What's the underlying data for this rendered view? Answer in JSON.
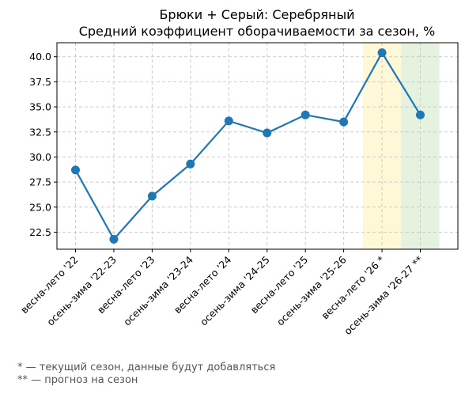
{
  "chart_data": {
    "type": "line",
    "title": "Брюки + Серый: Серебряный",
    "subtitle": "Средний коэффициент оборачиваемости за сезон, %",
    "xlabel": "",
    "ylabel": "",
    "categories": [
      "весна-лето '22",
      "осень-зима '22-23",
      "весна-лето '23",
      "осень-зима '23-24",
      "весна-лето '24",
      "осень-зима '24-25",
      "весна-лето '25",
      "осень-зима '25-26",
      "весна-лето '26 *",
      "осень-зима '26-27 **"
    ],
    "series": [
      {
        "values": [
          28.7,
          21.8,
          26.1,
          29.3,
          33.6,
          32.4,
          34.2,
          33.5,
          40.4,
          34.2
        ]
      }
    ],
    "yticks": [
      "22.5",
      "25.0",
      "27.5",
      "30.0",
      "32.5",
      "35.0",
      "37.5",
      "40.0"
    ],
    "ylim": [
      20.8,
      41.4
    ],
    "grid": true,
    "highlights": [
      {
        "category_index": 8,
        "color": "#fff8d6"
      },
      {
        "category_index": 9,
        "color": "#e6f2e0"
      }
    ],
    "line_color": "#1f77b4"
  },
  "footnotes": {
    "current": "* — текущий сезон, данные будут добавляться",
    "forecast": "** — прогноз на сезон"
  }
}
